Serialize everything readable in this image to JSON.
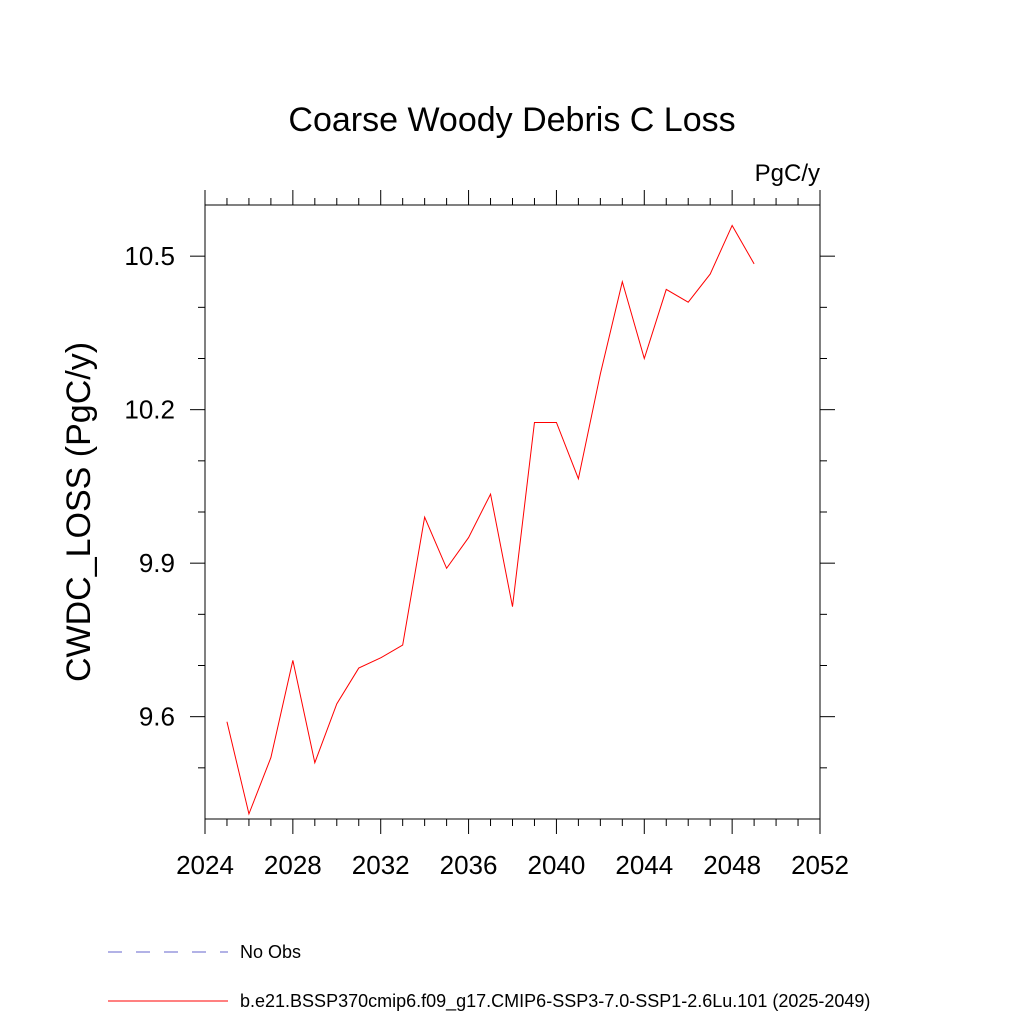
{
  "chart_data": {
    "type": "line",
    "title": "Coarse Woody Debris C Loss",
    "units": "PgC/y",
    "xlabel": "",
    "ylabel": "CWDC_LOSS  (PgC/y)",
    "xlim": [
      2024,
      2052
    ],
    "ylim": [
      9.4,
      10.6
    ],
    "x_ticks": [
      2024,
      2028,
      2032,
      2036,
      2040,
      2044,
      2048,
      2052
    ],
    "y_ticks": [
      9.6,
      9.9,
      10.2,
      10.5
    ],
    "y_tick_labels": [
      "9.6",
      "9.9",
      "10.2",
      "10.5"
    ],
    "grid": false,
    "legend_position": "bottom",
    "series": [
      {
        "name": "b.e21.BSSP370cmip6.f09_g17.CMIP6-SSP3-7.0-SSP1-2.6Lu.101 (2025-2049)",
        "color": "#ff0000",
        "style": "solid",
        "x": [
          2025,
          2026,
          2027,
          2028,
          2029,
          2030,
          2031,
          2032,
          2033,
          2034,
          2035,
          2036,
          2037,
          2038,
          2039,
          2040,
          2041,
          2042,
          2043,
          2044,
          2045,
          2046,
          2047,
          2048,
          2049
        ],
        "y": [
          9.59,
          9.41,
          9.52,
          9.71,
          9.51,
          9.625,
          9.695,
          9.715,
          9.74,
          9.99,
          9.89,
          9.95,
          10.035,
          9.815,
          10.175,
          10.175,
          10.065,
          10.27,
          10.45,
          10.3,
          10.435,
          10.41,
          10.465,
          10.56,
          10.485
        ]
      }
    ],
    "legend": [
      {
        "label": "No Obs",
        "color": "#6666cc",
        "style": "dashed"
      },
      {
        "label": "b.e21.BSSP370cmip6.f09_g17.CMIP6-SSP3-7.0-SSP1-2.6Lu.101 (2025-2049)",
        "color": "#ff0000",
        "style": "solid"
      }
    ]
  }
}
